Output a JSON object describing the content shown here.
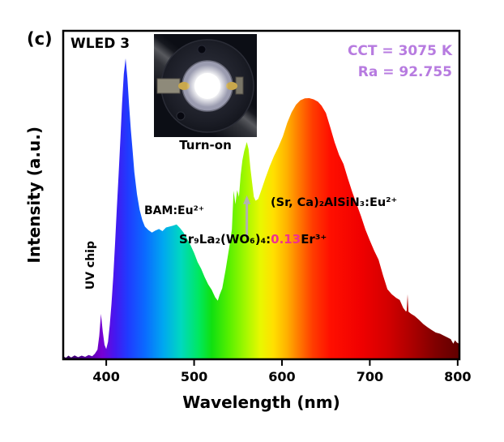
{
  "panel": {
    "tag": "(c)",
    "sample": "WLED 3"
  },
  "metrics": {
    "cct": "CCT = 3075 K",
    "ra": "Ra = 92.755",
    "color": "#b77be0"
  },
  "inset": {
    "caption": "Turn-on"
  },
  "annotations": {
    "uv_chip": "UV chip",
    "bam": "BAM:Eu²⁺",
    "er_prefix": "Sr₉La₂(WO₆)₄:",
    "er_doping": "0.13",
    "er_suffix": "Er³⁺",
    "doping_color": "#f0308f",
    "nitride": "(Sr, Ca)₂AlSiN₃:Eu²⁺"
  },
  "axes": {
    "x_label": "Wavelength (nm)",
    "y_label": "Intensity (a.u.)"
  },
  "chart_data": {
    "type": "area",
    "title": "WLED 3 electroluminescence spectrum",
    "xlabel": "Wavelength (nm)",
    "ylabel": "Intensity (a.u.)",
    "x_range": [
      351,
      802
    ],
    "y_range": [
      0,
      1.08
    ],
    "grid": false,
    "legend": "none",
    "x_ticks": [
      {
        "value": 400,
        "label": "400"
      },
      {
        "value": 500,
        "label": "500"
      },
      {
        "value": 600,
        "label": "600"
      },
      {
        "value": 700,
        "label": "700"
      },
      {
        "value": 800,
        "label": "800"
      }
    ],
    "arrow": {
      "wavelength": 560,
      "from_intensity": 0.4,
      "to_intensity": 0.545
    },
    "gradient_stops": [
      {
        "offset": 0.0,
        "color": "#2e0054"
      },
      {
        "offset": 0.064,
        "color": "#5a00a8"
      },
      {
        "offset": 0.098,
        "color": "#7700d4"
      },
      {
        "offset": 0.131,
        "color": "#4418f0"
      },
      {
        "offset": 0.164,
        "color": "#1f3cff"
      },
      {
        "offset": 0.208,
        "color": "#0a6cff"
      },
      {
        "offset": 0.253,
        "color": "#00a8f0"
      },
      {
        "offset": 0.297,
        "color": "#00d8c0"
      },
      {
        "offset": 0.342,
        "color": "#00e860"
      },
      {
        "offset": 0.375,
        "color": "#10e010"
      },
      {
        "offset": 0.419,
        "color": "#58f000"
      },
      {
        "offset": 0.463,
        "color": "#a8f800"
      },
      {
        "offset": 0.497,
        "color": "#e8f800"
      },
      {
        "offset": 0.53,
        "color": "#ffe000"
      },
      {
        "offset": 0.563,
        "color": "#ffb400"
      },
      {
        "offset": 0.596,
        "color": "#ff7800"
      },
      {
        "offset": 0.63,
        "color": "#ff3c00"
      },
      {
        "offset": 0.674,
        "color": "#ff0f00"
      },
      {
        "offset": 0.752,
        "color": "#f00000"
      },
      {
        "offset": 0.818,
        "color": "#d40000"
      },
      {
        "offset": 0.885,
        "color": "#a80000"
      },
      {
        "offset": 0.94,
        "color": "#800000"
      },
      {
        "offset": 1.0,
        "color": "#600000"
      }
    ],
    "points": [
      [
        351,
        0.01
      ],
      [
        354,
        0.005
      ],
      [
        357,
        0.012
      ],
      [
        360,
        0.006
      ],
      [
        364,
        0.013
      ],
      [
        368,
        0.007
      ],
      [
        372,
        0.012
      ],
      [
        376,
        0.008
      ],
      [
        380,
        0.014
      ],
      [
        384,
        0.01
      ],
      [
        387,
        0.018
      ],
      [
        390,
        0.032
      ],
      [
        392,
        0.078
      ],
      [
        394,
        0.151
      ],
      [
        396,
        0.092
      ],
      [
        398,
        0.048
      ],
      [
        400,
        0.034
      ],
      [
        402,
        0.058
      ],
      [
        404,
        0.115
      ],
      [
        406,
        0.185
      ],
      [
        408,
        0.275
      ],
      [
        410,
        0.385
      ],
      [
        412,
        0.498
      ],
      [
        414,
        0.61
      ],
      [
        416,
        0.728
      ],
      [
        418,
        0.848
      ],
      [
        420,
        0.948
      ],
      [
        422,
        1.0
      ],
      [
        424,
        0.935
      ],
      [
        426,
        0.845
      ],
      [
        428,
        0.762
      ],
      [
        430,
        0.692
      ],
      [
        432,
        0.622
      ],
      [
        435,
        0.548
      ],
      [
        438,
        0.497
      ],
      [
        441,
        0.463
      ],
      [
        444,
        0.441
      ],
      [
        448,
        0.429
      ],
      [
        452,
        0.421
      ],
      [
        456,
        0.428
      ],
      [
        460,
        0.433
      ],
      [
        464,
        0.426
      ],
      [
        468,
        0.438
      ],
      [
        472,
        0.441
      ],
      [
        476,
        0.444
      ],
      [
        480,
        0.448
      ],
      [
        484,
        0.436
      ],
      [
        488,
        0.421
      ],
      [
        492,
        0.401
      ],
      [
        496,
        0.379
      ],
      [
        500,
        0.353
      ],
      [
        504,
        0.323
      ],
      [
        508,
        0.301
      ],
      [
        512,
        0.273
      ],
      [
        516,
        0.249
      ],
      [
        520,
        0.231
      ],
      [
        524,
        0.206
      ],
      [
        527,
        0.195
      ],
      [
        529,
        0.214
      ],
      [
        532,
        0.236
      ],
      [
        536,
        0.3
      ],
      [
        540,
        0.372
      ],
      [
        543,
        0.432
      ],
      [
        545,
        0.56
      ],
      [
        547,
        0.515
      ],
      [
        549,
        0.562
      ],
      [
        551,
        0.54
      ],
      [
        553,
        0.612
      ],
      [
        555,
        0.662
      ],
      [
        557,
        0.692
      ],
      [
        560,
        0.722
      ],
      [
        562,
        0.698
      ],
      [
        564,
        0.638
      ],
      [
        566,
        0.588
      ],
      [
        568,
        0.54
      ],
      [
        570,
        0.527
      ],
      [
        573,
        0.533
      ],
      [
        577,
        0.566
      ],
      [
        581,
        0.601
      ],
      [
        586,
        0.641
      ],
      [
        591,
        0.676
      ],
      [
        596,
        0.706
      ],
      [
        601,
        0.741
      ],
      [
        606,
        0.786
      ],
      [
        611,
        0.821
      ],
      [
        616,
        0.846
      ],
      [
        621,
        0.861
      ],
      [
        626,
        0.867
      ],
      [
        631,
        0.868
      ],
      [
        636,
        0.864
      ],
      [
        641,
        0.856
      ],
      [
        645,
        0.843
      ],
      [
        650,
        0.819
      ],
      [
        655,
        0.771
      ],
      [
        660,
        0.721
      ],
      [
        665,
        0.679
      ],
      [
        670,
        0.649
      ],
      [
        675,
        0.601
      ],
      [
        680,
        0.556
      ],
      [
        685,
        0.516
      ],
      [
        690,
        0.475
      ],
      [
        695,
        0.431
      ],
      [
        700,
        0.395
      ],
      [
        705,
        0.361
      ],
      [
        710,
        0.331
      ],
      [
        715,
        0.279
      ],
      [
        720,
        0.233
      ],
      [
        725,
        0.216
      ],
      [
        730,
        0.204
      ],
      [
        734,
        0.197
      ],
      [
        738,
        0.171
      ],
      [
        741,
        0.159
      ],
      [
        742,
        0.161
      ],
      [
        743,
        0.216
      ],
      [
        744,
        0.158
      ],
      [
        747,
        0.151
      ],
      [
        751,
        0.144
      ],
      [
        756,
        0.131
      ],
      [
        761,
        0.117
      ],
      [
        766,
        0.106
      ],
      [
        770,
        0.098
      ],
      [
        775,
        0.089
      ],
      [
        780,
        0.085
      ],
      [
        784,
        0.079
      ],
      [
        788,
        0.073
      ],
      [
        792,
        0.067
      ],
      [
        795,
        0.052
      ],
      [
        797,
        0.063
      ],
      [
        799,
        0.056
      ],
      [
        802,
        0.051
      ]
    ]
  }
}
